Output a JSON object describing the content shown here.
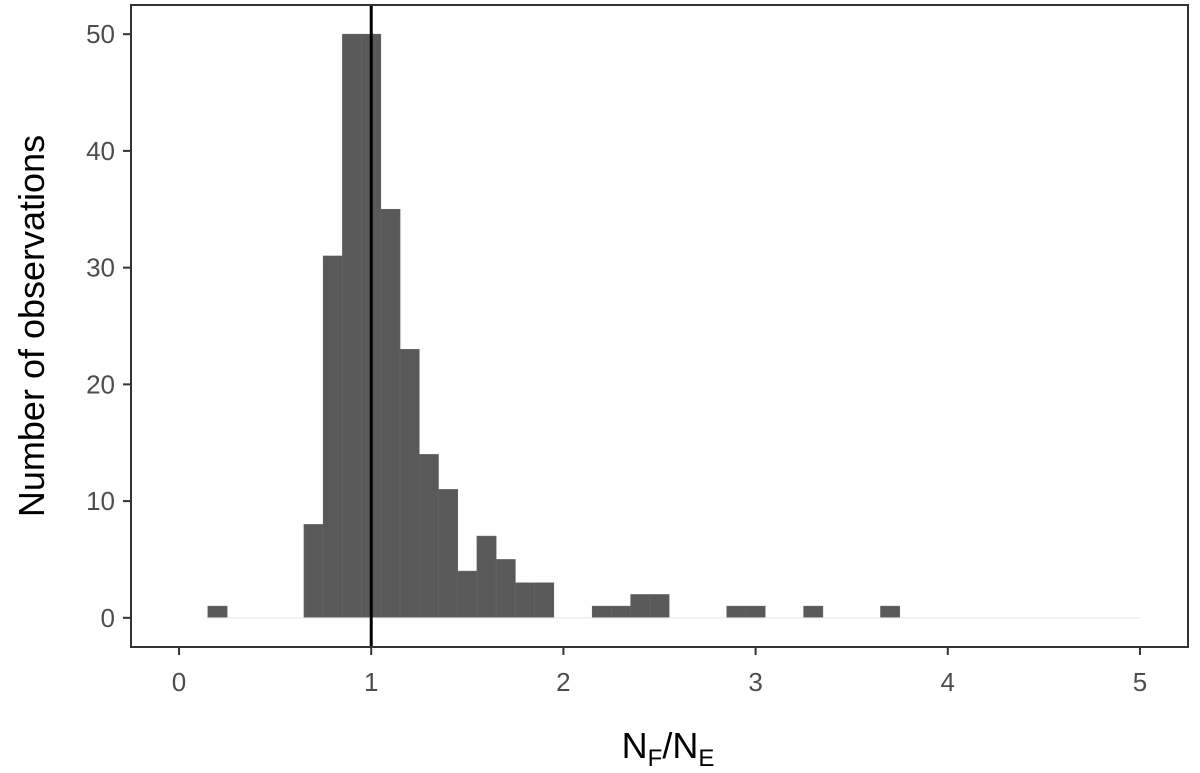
{
  "chart_data": {
    "type": "bar",
    "title": "",
    "xlabel": {
      "main1": "N",
      "sub1": "F",
      "sep": "/",
      "main2": "N",
      "sub2": "E"
    },
    "ylabel": "Number of observations",
    "xlim": [
      -0.25,
      5.25
    ],
    "ylim": [
      -2.5,
      52.5
    ],
    "xticks": [
      0,
      1,
      2,
      3,
      4,
      5
    ],
    "yticks": [
      0,
      10,
      20,
      30,
      40,
      50
    ],
    "bin_width": 0.1,
    "bins": [
      {
        "x": 0.2,
        "count": 1
      },
      {
        "x": 0.7,
        "count": 8
      },
      {
        "x": 0.8,
        "count": 31
      },
      {
        "x": 0.9,
        "count": 50
      },
      {
        "x": 1.0,
        "count": 50
      },
      {
        "x": 1.1,
        "count": 35
      },
      {
        "x": 1.2,
        "count": 23
      },
      {
        "x": 1.3,
        "count": 14
      },
      {
        "x": 1.4,
        "count": 11
      },
      {
        "x": 1.5,
        "count": 4
      },
      {
        "x": 1.6,
        "count": 7
      },
      {
        "x": 1.7,
        "count": 5
      },
      {
        "x": 1.8,
        "count": 3
      },
      {
        "x": 1.9,
        "count": 3
      },
      {
        "x": 2.2,
        "count": 1
      },
      {
        "x": 2.3,
        "count": 1
      },
      {
        "x": 2.4,
        "count": 2
      },
      {
        "x": 2.5,
        "count": 2
      },
      {
        "x": 2.9,
        "count": 1
      },
      {
        "x": 3.0,
        "count": 1
      },
      {
        "x": 3.3,
        "count": 1
      },
      {
        "x": 3.7,
        "count": 1
      }
    ],
    "reference_line_x": 1,
    "grid": false,
    "colors": {
      "bar": "#595959",
      "reference_line": "#000000",
      "frame": "#333333",
      "tick_label": "#4d4d4d"
    }
  }
}
